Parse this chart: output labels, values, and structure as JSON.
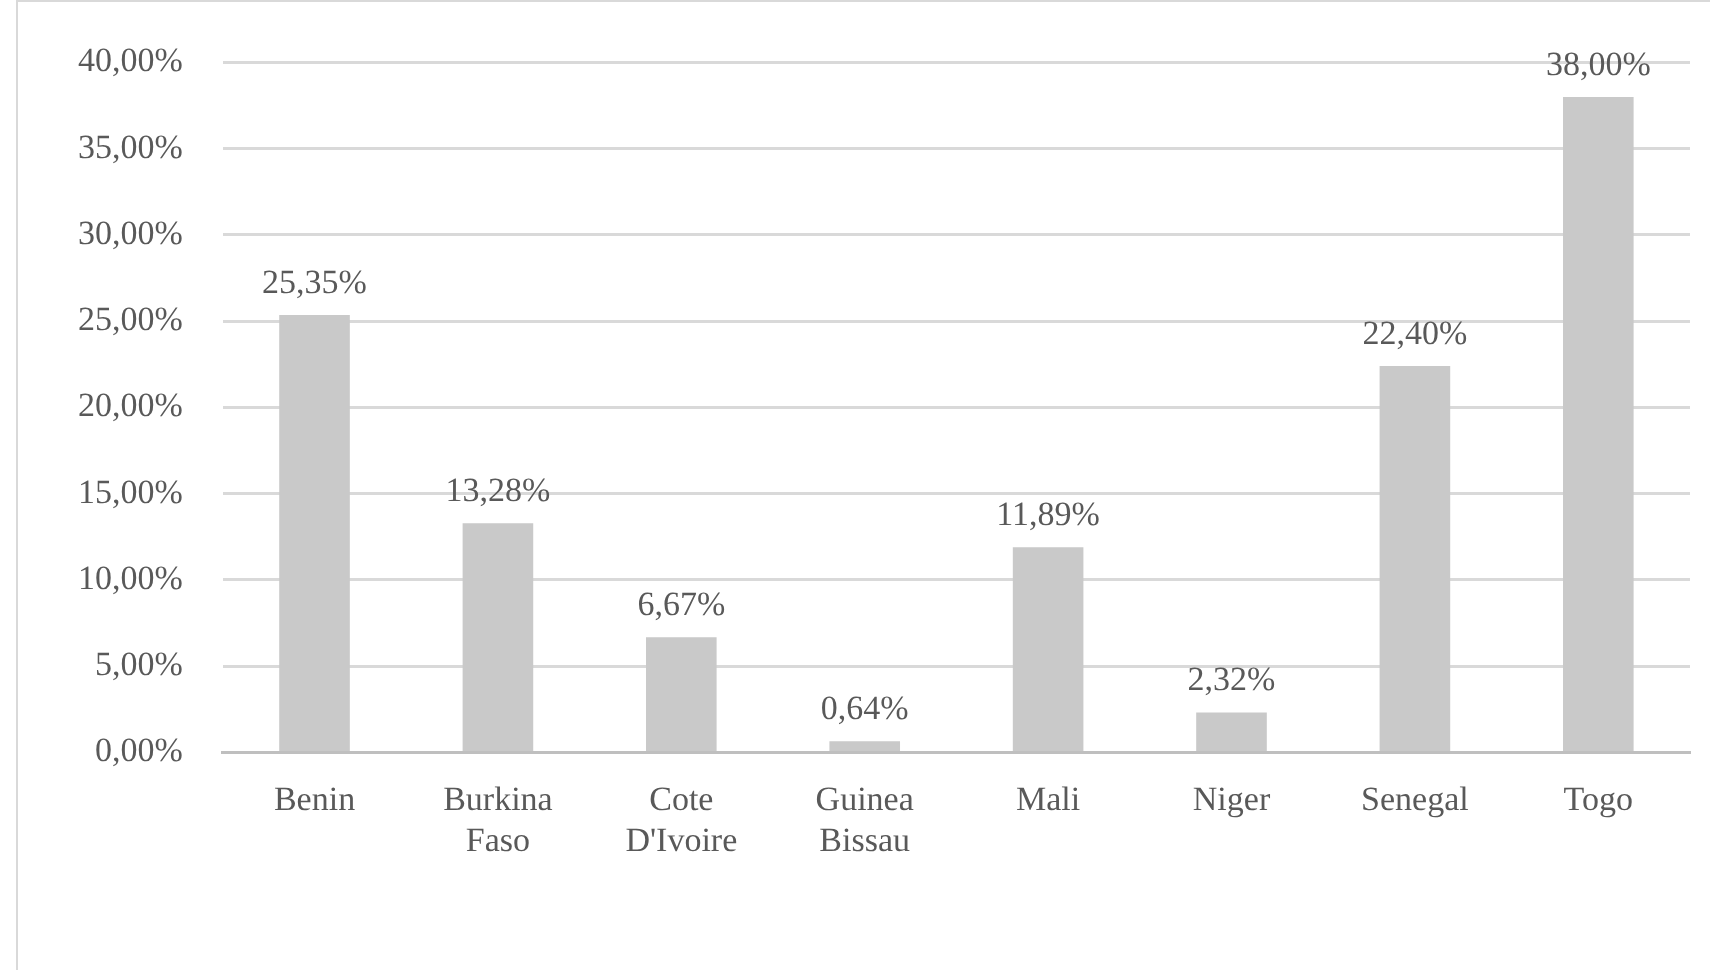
{
  "chart_data": {
    "type": "bar",
    "categories": [
      "Benin",
      "Burkina Faso",
      "Cote D'Ivoire",
      "Guinea Bissau",
      "Mali",
      "Niger",
      "Senegal",
      "Togo"
    ],
    "series": [
      {
        "color": "#c9c9c9",
        "values": [
          25.35,
          13.28,
          6.67,
          0.64,
          11.89,
          2.32,
          22.4,
          38
        ],
        "value_labels": [
          "25,35%",
          "13,28%",
          "6,67%",
          "0,64%",
          "11,89%",
          "2,32%",
          "22,40%",
          "38,00%"
        ]
      }
    ],
    "ylim": [
      0,
      40
    ],
    "yticks": [
      {
        "value": 0,
        "label": "0,00%"
      },
      {
        "value": 5,
        "label": "5,00%"
      },
      {
        "value": 10,
        "label": "10,00%"
      },
      {
        "value": 15,
        "label": "15,00%"
      },
      {
        "value": 20,
        "label": "20,00%"
      },
      {
        "value": 25,
        "label": "25,00%"
      },
      {
        "value": 30,
        "label": "30,00%"
      },
      {
        "value": 35,
        "label": "35,00%"
      },
      {
        "value": 40,
        "label": "40,00%"
      }
    ],
    "grid": "y",
    "legend": false
  }
}
